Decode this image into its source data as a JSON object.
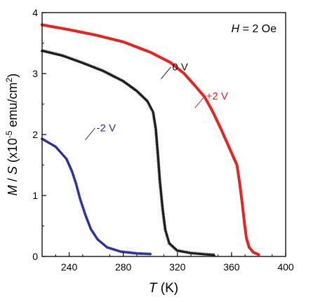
{
  "chart_data": {
    "type": "scatter",
    "x_axis": {
      "label_italic": "T",
      "label_rest": " (K)",
      "range": [
        220,
        400
      ],
      "ticks": [
        240,
        280,
        320,
        360,
        400
      ],
      "tick_labels": [
        "240",
        "280",
        "320",
        "360",
        "400"
      ]
    },
    "y_axis": {
      "label_italic_m": "M",
      "label_slash": " / ",
      "label_italic_s": "S",
      "label_open": " (x10",
      "label_exp": "-5",
      "label_unit": " emu/cm",
      "label_exp2": "2",
      "label_close": ")",
      "range": [
        0,
        4
      ],
      "ticks": [
        0,
        1,
        2,
        3,
        4
      ],
      "tick_labels": [
        "0",
        "1",
        "2",
        "3",
        "4"
      ]
    },
    "annotation": {
      "italic": "H",
      "rest": " = 2 Oe"
    },
    "series": [
      {
        "name": "+2 V",
        "color": "#e8231f",
        "marker": "circle",
        "label_at": {
          "x": 336,
          "y": 2.48
        },
        "points": [
          [
            220,
            3.8
          ],
          [
            240,
            3.72
          ],
          [
            260,
            3.63
          ],
          [
            280,
            3.52
          ],
          [
            300,
            3.35
          ],
          [
            315,
            3.18
          ],
          [
            325,
            3.0
          ],
          [
            333,
            2.8
          ],
          [
            340,
            2.62
          ],
          [
            346,
            2.38
          ],
          [
            352,
            2.1
          ],
          [
            358,
            1.8
          ],
          [
            364,
            1.5
          ],
          [
            366,
            1.2
          ],
          [
            368,
            0.85
          ],
          [
            369.5,
            0.55
          ],
          [
            371,
            0.3
          ],
          [
            373,
            0.15
          ],
          [
            376,
            0.07
          ],
          [
            380,
            0.03
          ]
        ]
      },
      {
        "name": "0 V",
        "color": "#1a1a1a",
        "marker": "triangle",
        "label_at": {
          "x": 311,
          "y": 2.98
        },
        "points": [
          [
            220,
            3.38
          ],
          [
            235,
            3.3
          ],
          [
            250,
            3.18
          ],
          [
            265,
            3.05
          ],
          [
            280,
            2.88
          ],
          [
            290,
            2.72
          ],
          [
            298,
            2.55
          ],
          [
            302,
            2.38
          ],
          [
            304,
            2.1
          ],
          [
            305.5,
            1.7
          ],
          [
            307,
            1.25
          ],
          [
            309,
            0.8
          ],
          [
            311,
            0.45
          ],
          [
            314,
            0.22
          ],
          [
            320,
            0.1
          ],
          [
            330,
            0.06
          ],
          [
            340,
            0.04
          ],
          [
            347,
            0.03
          ]
        ]
      },
      {
        "name": "-2 V",
        "color": "#2a309b",
        "marker": "diamond",
        "label_at": {
          "x": 255,
          "y": 1.98
        },
        "points": [
          [
            220,
            1.93
          ],
          [
            230,
            1.8
          ],
          [
            238,
            1.6
          ],
          [
            242,
            1.4
          ],
          [
            245,
            1.2
          ],
          [
            248,
            0.95
          ],
          [
            252,
            0.68
          ],
          [
            256,
            0.45
          ],
          [
            261,
            0.28
          ],
          [
            268,
            0.15
          ],
          [
            278,
            0.08
          ],
          [
            290,
            0.05
          ],
          [
            300,
            0.04
          ]
        ]
      }
    ]
  }
}
